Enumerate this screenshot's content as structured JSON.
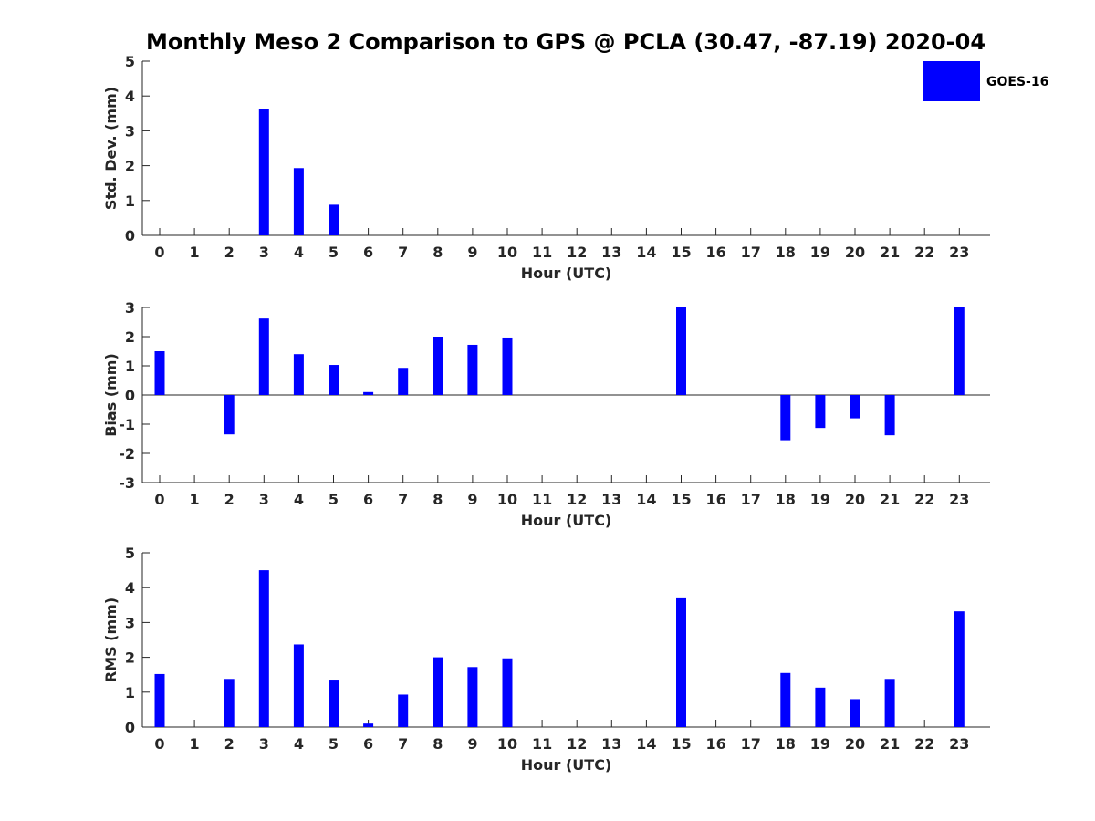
{
  "title": "Monthly Meso 2 Comparison to GPS @ PCLA (30.47, -87.19) 2020-04",
  "colors": {
    "bar": "#0000FF",
    "axis": "#262626",
    "background": "#FFFFFF"
  },
  "legend": {
    "label": "GOES-16",
    "placement": "top-right"
  },
  "chart_data": [
    {
      "type": "bar",
      "ylabel": "Std. Dev. (mm)",
      "xlabel": "Hour (UTC)",
      "ylim": [
        0,
        5
      ],
      "yticks": [
        0,
        1,
        2,
        3,
        4,
        5
      ],
      "categories": [
        "0",
        "1",
        "2",
        "3",
        "4",
        "5",
        "6",
        "7",
        "8",
        "9",
        "10",
        "11",
        "12",
        "13",
        "14",
        "15",
        "16",
        "17",
        "18",
        "19",
        "20",
        "21",
        "22",
        "23"
      ],
      "series": [
        {
          "name": "GOES-16",
          "values": [
            0,
            0,
            0,
            3.62,
            1.93,
            0.88,
            0,
            0,
            0,
            0,
            0,
            0,
            0,
            0,
            0,
            0,
            0,
            0,
            0,
            0,
            0,
            0,
            0,
            0
          ]
        }
      ]
    },
    {
      "type": "bar",
      "ylabel": "Bias (mm)",
      "xlabel": "Hour (UTC)",
      "ylim": [
        -3,
        3
      ],
      "yticks": [
        -3,
        -2,
        -1,
        0,
        1,
        2,
        3
      ],
      "zero_line": true,
      "categories": [
        "0",
        "1",
        "2",
        "3",
        "4",
        "5",
        "6",
        "7",
        "8",
        "9",
        "10",
        "11",
        "12",
        "13",
        "14",
        "15",
        "16",
        "17",
        "18",
        "19",
        "20",
        "21",
        "22",
        "23"
      ],
      "series": [
        {
          "name": "GOES-16",
          "values": [
            1.5,
            0,
            -1.35,
            2.62,
            1.4,
            1.03,
            0.1,
            0.93,
            2.0,
            1.72,
            1.97,
            0,
            0,
            0,
            0,
            3.0,
            0,
            0,
            -1.55,
            -1.13,
            -0.8,
            -1.38,
            0,
            3.0
          ]
        }
      ]
    },
    {
      "type": "bar",
      "ylabel": "RMS (mm)",
      "xlabel": "Hour (UTC)",
      "ylim": [
        0,
        5
      ],
      "yticks": [
        0,
        1,
        2,
        3,
        4,
        5
      ],
      "categories": [
        "0",
        "1",
        "2",
        "3",
        "4",
        "5",
        "6",
        "7",
        "8",
        "9",
        "10",
        "11",
        "12",
        "13",
        "14",
        "15",
        "16",
        "17",
        "18",
        "19",
        "20",
        "21",
        "22",
        "23"
      ],
      "series": [
        {
          "name": "GOES-16",
          "values": [
            1.52,
            0,
            1.38,
            4.5,
            2.37,
            1.36,
            0.1,
            0.93,
            2.0,
            1.72,
            1.97,
            0,
            0,
            0,
            0,
            3.72,
            0,
            0,
            1.55,
            1.13,
            0.8,
            1.38,
            0,
            3.32
          ]
        }
      ]
    }
  ]
}
